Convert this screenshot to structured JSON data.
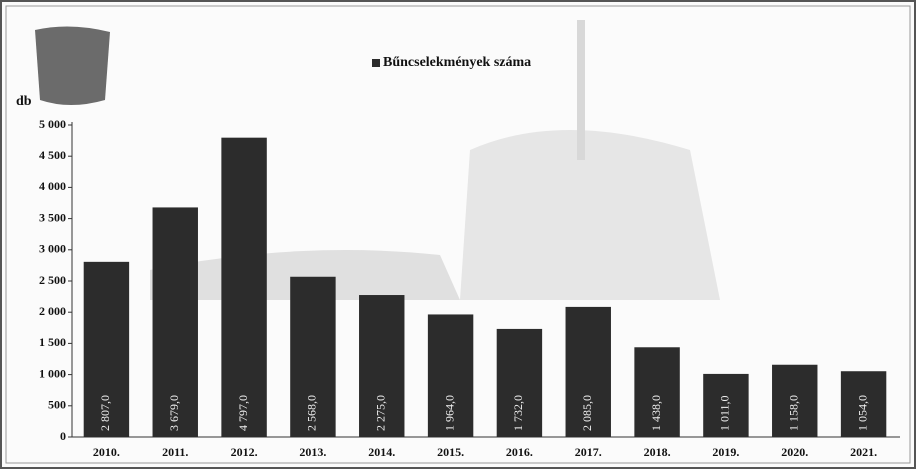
{
  "chart_data": {
    "type": "bar",
    "y_label": "db",
    "categories": [
      "2010.",
      "2011.",
      "2012.",
      "2013.",
      "2014.",
      "2015.",
      "2016.",
      "2017.",
      "2018.",
      "2019.",
      "2020.",
      "2021."
    ],
    "series": [
      {
        "name": "Bűncselekmények száma",
        "color": "#2c2c2c",
        "values": [
          2807,
          3679,
          4797,
          2568,
          2275,
          1964,
          1732,
          2085,
          1438,
          1011,
          1158,
          1054
        ],
        "value_labels": [
          "2 807,0",
          "3 679,0",
          "4 797,0",
          "2 568,0",
          "2 275,0",
          "1 964,0",
          "1 732,0",
          "2 085,0",
          "1 438,0",
          "1 011,0",
          "1 158,0",
          "1 054,0"
        ]
      }
    ],
    "ylim": [
      0,
      5000
    ],
    "yticks": [
      0,
      500,
      {
        "value": 1000,
        "label": "1 000"
      },
      {
        "value": 1500,
        "label": "1 500"
      },
      {
        "value": 2000,
        "label": "2 000"
      },
      {
        "value": 2500,
        "label": "2 500"
      },
      {
        "value": 3000,
        "label": "3 000"
      },
      {
        "value": 3500,
        "label": "3 500"
      },
      {
        "value": 4000,
        "label": "4 000"
      },
      {
        "value": 4500,
        "label": "4 500"
      },
      {
        "value": 5000,
        "label": "5 000"
      }
    ],
    "legend": "top"
  }
}
